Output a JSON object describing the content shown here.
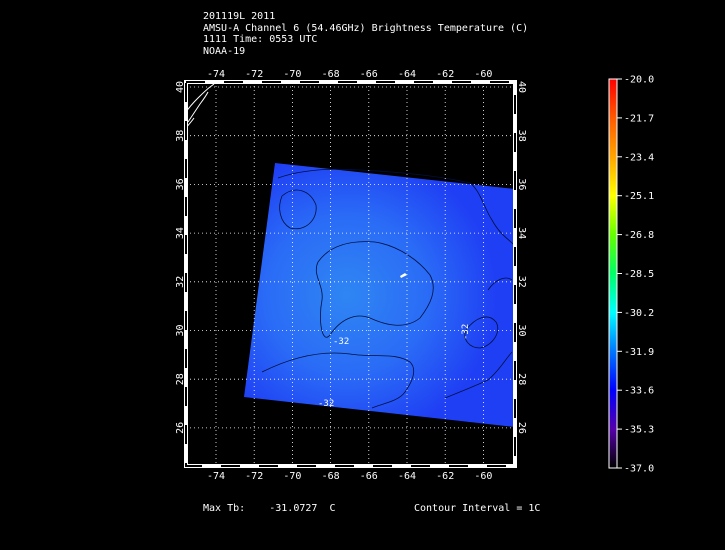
{
  "header": {
    "line1": "201119L 2011",
    "line2": "AMSU-A Channel 6 (54.46GHz) Brightness Temperature (C)",
    "line3": "1111 Time: 0553 UTC",
    "line4": "NOAA-19"
  },
  "footer": {
    "max_tb_label": "Max Tb:",
    "max_tb_value": "-31.0727",
    "max_tb_unit": "C",
    "contour_interval": "Contour Interval = 1C"
  },
  "map": {
    "lon_ticks": [
      "-74",
      "-72",
      "-70",
      "-68",
      "-66",
      "-64",
      "-62",
      "-60"
    ],
    "lat_ticks": [
      "40",
      "38",
      "36",
      "34",
      "32",
      "30",
      "28",
      "26"
    ],
    "contour_labels": [
      "-32",
      "-32",
      "-32"
    ],
    "swath_colors": {
      "cool": "#1f3ff4",
      "mid": "#2a6bf6",
      "warm": "#2f86f3"
    }
  },
  "colorbar": {
    "labels": [
      "-20.0",
      "-21.7",
      "-23.4",
      "-25.1",
      "-26.8",
      "-28.5",
      "-30.2",
      "-31.9",
      "-33.6",
      "-35.3",
      "-37.0"
    ],
    "colors": [
      "#ff0000",
      "#ff5a00",
      "#ffa500",
      "#ffff00",
      "#66ff00",
      "#00ff66",
      "#00ffff",
      "#0077ff",
      "#0000ff",
      "#5500aa",
      "#000000"
    ]
  }
}
